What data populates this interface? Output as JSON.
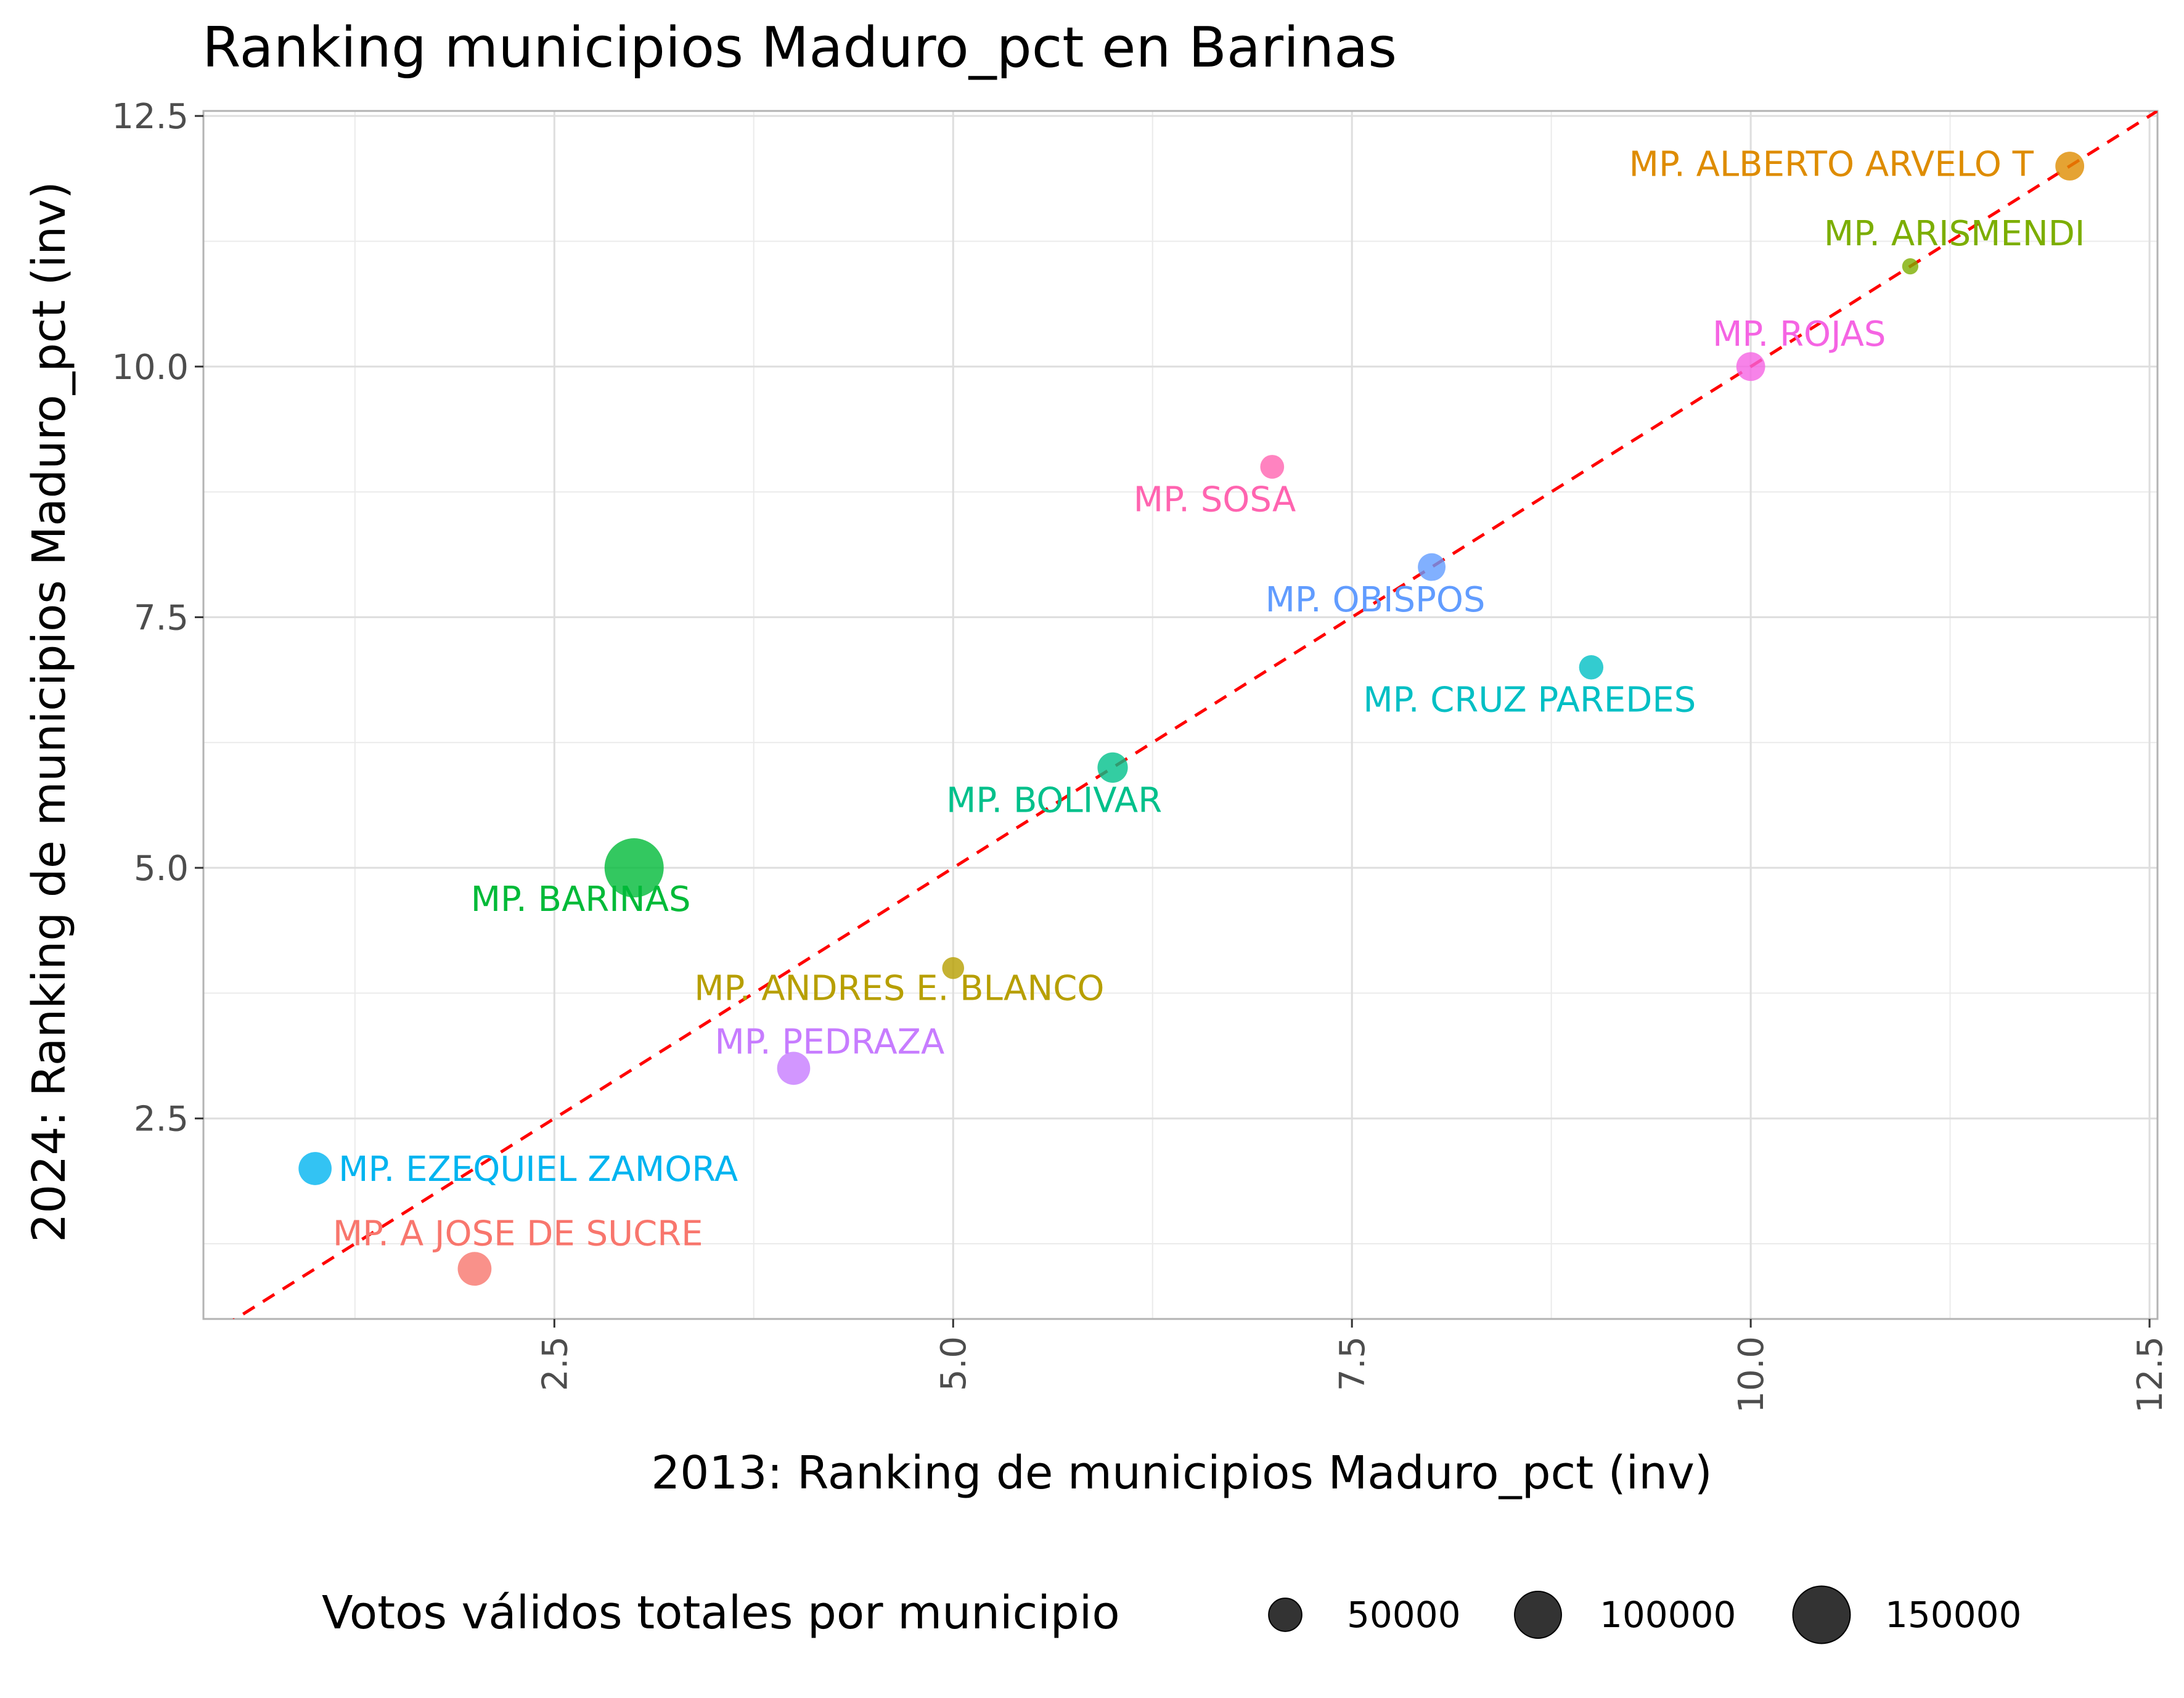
{
  "chart_data": {
    "type": "scatter",
    "title": "Ranking municipios Maduro_pct en Barinas",
    "xlabel": "2013: Ranking de municipios Maduro_pct (inv)",
    "ylabel": "2024: Ranking de municipios Maduro_pct (inv)",
    "xlim": [
      0.3,
      12.55
    ],
    "ylim": [
      0.5,
      12.55
    ],
    "x_ticks": [
      "2.5",
      "5.0",
      "7.5",
      "10.0",
      "12.5"
    ],
    "y_ticks": [
      "2.5",
      "5.0",
      "7.5",
      "10.0",
      "12.5"
    ],
    "x_tick_rotation": "vertical",
    "grid": true,
    "reference_line": {
      "slope": 1,
      "intercept": 0,
      "color": "#ff0000",
      "style": "dashed"
    },
    "points": [
      {
        "label": "MP. A JOSE DE SUCRE",
        "x": 2,
        "y": 1,
        "votes": 52000,
        "color": "#F8766D"
      },
      {
        "label": "MP. ALBERTO ARVELO T",
        "x": 12,
        "y": 12,
        "votes": 38000,
        "color": "#DE8C00"
      },
      {
        "label": "MP. ANDRES E. BLANCO",
        "x": 5,
        "y": 4,
        "votes": 22000,
        "color": "#B79F00"
      },
      {
        "label": "MP. ARISMENDI",
        "x": 11,
        "y": 11,
        "votes": 12000,
        "color": "#7CAE00"
      },
      {
        "label": "MP. BARINAS",
        "x": 3,
        "y": 5,
        "votes": 160000,
        "color": "#00BA38"
      },
      {
        "label": "MP. BOLIVAR",
        "x": 6,
        "y": 6,
        "votes": 42000,
        "color": "#00C08B"
      },
      {
        "label": "MP. CRUZ PAREDES",
        "x": 9,
        "y": 7,
        "votes": 27000,
        "color": "#00BFC4"
      },
      {
        "label": "MP. EZEQUIEL ZAMORA",
        "x": 1,
        "y": 2,
        "votes": 50000,
        "color": "#00B4F0"
      },
      {
        "label": "MP. OBISPOS",
        "x": 8,
        "y": 8,
        "votes": 35000,
        "color": "#619CFF"
      },
      {
        "label": "MP. PEDRAZA",
        "x": 4,
        "y": 3,
        "votes": 50000,
        "color": "#C77CFF"
      },
      {
        "label": "MP. ROJAS",
        "x": 10,
        "y": 10,
        "votes": 38000,
        "color": "#F564E3"
      },
      {
        "label": "MP. SOSA",
        "x": 7,
        "y": 9,
        "votes": 26000,
        "color": "#FF64B0"
      }
    ],
    "legend": {
      "title": "Votos válidos totales por municipio",
      "position": "bottom",
      "entries": [
        {
          "label": "50000",
          "value": 50000
        },
        {
          "label": "100000",
          "value": 100000
        },
        {
          "label": "150000",
          "value": 150000
        }
      ]
    }
  }
}
